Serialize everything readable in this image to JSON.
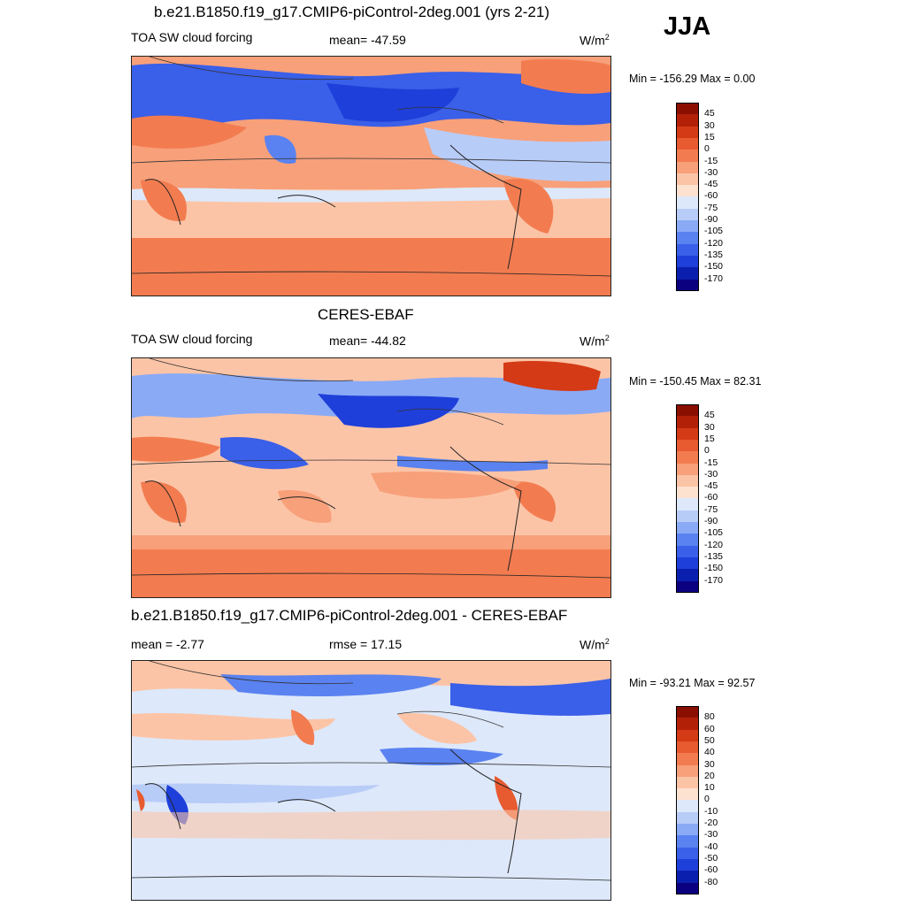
{
  "season": "JJA",
  "colors": {
    "cf_palette": [
      "#0b0080",
      "#0a1fae",
      "#1e3fd9",
      "#3a5fe8",
      "#5a82f0",
      "#8aaaf6",
      "#b8ccf8",
      "#dde8fa",
      "#fde2d0",
      "#fcc4a6",
      "#f7a07a",
      "#f27c50",
      "#e85a30",
      "#d43a16",
      "#b32008",
      "#8a0f00"
    ],
    "diff_palette": [
      "#0b0080",
      "#0a1fae",
      "#1e3fd9",
      "#3a5fe8",
      "#5a82f0",
      "#8aaaf6",
      "#b8ccf8",
      "#dde8fa",
      "#ffffff",
      "#fde2d0",
      "#fcc4a6",
      "#f7a07a",
      "#f27c50",
      "#e85a30",
      "#d43a16",
      "#b32008",
      "#8a0f00"
    ]
  },
  "panels": [
    {
      "title": "b.e21.B1850.f19_g17.CMIP6-piControl-2deg.001 (yrs 2-21)",
      "left_label": "TOA SW cloud forcing",
      "center_label": "mean= -47.59",
      "units": "W/m",
      "units_sup": "2",
      "minmax": "Min = -156.29 Max =    0.00",
      "colorbar_labels": [
        "45",
        "30",
        "15",
        "0",
        "-15",
        "-30",
        "-45",
        "-60",
        "-75",
        "-90",
        "-105",
        "-120",
        "-135",
        "-150",
        "-170"
      ]
    },
    {
      "title": "CERES-EBAF",
      "left_label": "TOA SW cloud forcing",
      "center_label": "mean= -44.82",
      "units": "W/m",
      "units_sup": "2",
      "minmax": "Min = -150.45 Max =  82.31",
      "colorbar_labels": [
        "45",
        "30",
        "15",
        "0",
        "-15",
        "-30",
        "-45",
        "-60",
        "-75",
        "-90",
        "-105",
        "-120",
        "-135",
        "-150",
        "-170"
      ]
    },
    {
      "title": "b.e21.B1850.f19_g17.CMIP6-piControl-2deg.001 - CERES-EBAF",
      "left_label": "mean =  -2.77",
      "center_label": "rmse =  17.15",
      "units": "W/m",
      "units_sup": "2",
      "minmax": "Min = -93.21 Max =  92.57",
      "colorbar_labels": [
        "80",
        "60",
        "50",
        "40",
        "30",
        "20",
        "10",
        "0",
        "-10",
        "-20",
        "-30",
        "-40",
        "-50",
        "-60",
        "-80"
      ]
    }
  ]
}
